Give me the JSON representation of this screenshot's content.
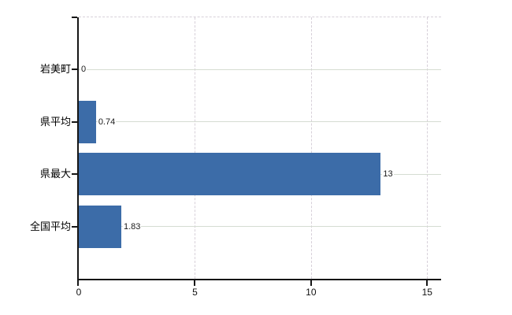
{
  "chart_data": {
    "type": "bar",
    "orientation": "horizontal",
    "title": "",
    "xlabel": "",
    "ylabel": "",
    "categories": [
      "岩美町",
      "県平均",
      "県最大",
      "全国平均"
    ],
    "values": [
      0,
      0.74,
      13,
      1.83
    ],
    "value_labels": [
      "0",
      "0.74",
      "13",
      "1.83"
    ],
    "x_ticks": [
      0,
      5,
      10,
      15
    ],
    "x_tick_labels": [
      "0",
      "5",
      "10",
      "15"
    ],
    "xlim": [
      0,
      15.6
    ],
    "grid": {
      "vertical": "dashed",
      "horizontal": "solid",
      "top_border": "dashed"
    },
    "legend": "none",
    "colors": {
      "bar": "#3c6ca8",
      "gridline_horizontal": "#d5dcd2",
      "gridline_vertical": "#d7d0d9",
      "axis": "#161616",
      "text": "#000000",
      "background": "#ffffff"
    }
  }
}
